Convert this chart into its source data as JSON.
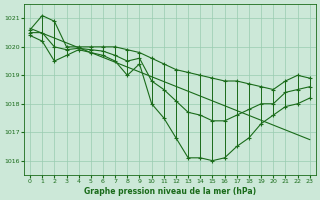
{
  "title": "Graphe pression niveau de la mer (hPa)",
  "bg_color": "#cce8d8",
  "grid_color": "#99ccb0",
  "line_color": "#1a6b1a",
  "xlim": [
    -0.5,
    23.5
  ],
  "ylim": [
    1015.5,
    1021.5
  ],
  "yticks": [
    1016,
    1017,
    1018,
    1019,
    1020,
    1021
  ],
  "xticks": [
    0,
    1,
    2,
    3,
    4,
    5,
    6,
    7,
    8,
    9,
    10,
    11,
    12,
    13,
    14,
    15,
    16,
    17,
    18,
    19,
    20,
    21,
    22,
    23
  ],
  "series": {
    "max": [
      1020.6,
      1021.1,
      1020.9,
      1020.0,
      1020.0,
      1020.0,
      1020.0,
      1020.0,
      1019.9,
      1019.8,
      1019.6,
      1019.4,
      1019.2,
      1019.1,
      1019.0,
      1018.9,
      1018.8,
      1018.8,
      1018.7,
      1018.6,
      1018.5,
      1018.8,
      1019.0,
      1018.9
    ],
    "min": [
      1020.4,
      1020.2,
      1019.5,
      1019.7,
      1019.9,
      1019.8,
      1019.7,
      1019.5,
      1019.0,
      1019.4,
      1018.0,
      1017.5,
      1016.8,
      1016.1,
      1016.1,
      1016.0,
      1016.1,
      1016.5,
      1016.8,
      1017.3,
      1017.6,
      1017.9,
      1018.0,
      1018.2
    ],
    "mean": [
      1020.5,
      1020.5,
      1020.0,
      1019.9,
      1019.95,
      1019.9,
      1019.85,
      1019.7,
      1019.5,
      1019.6,
      1018.8,
      1018.5,
      1018.1,
      1017.7,
      1017.6,
      1017.4,
      1017.4,
      1017.6,
      1017.8,
      1018.0,
      1018.0,
      1018.4,
      1018.5,
      1018.6
    ],
    "trend": [
      1020.65,
      1020.48,
      1020.31,
      1020.14,
      1019.97,
      1019.8,
      1019.63,
      1019.46,
      1019.29,
      1019.12,
      1018.95,
      1018.78,
      1018.61,
      1018.44,
      1018.27,
      1018.1,
      1017.93,
      1017.76,
      1017.59,
      1017.42,
      1017.25,
      1017.08,
      1016.91,
      1016.74
    ]
  }
}
